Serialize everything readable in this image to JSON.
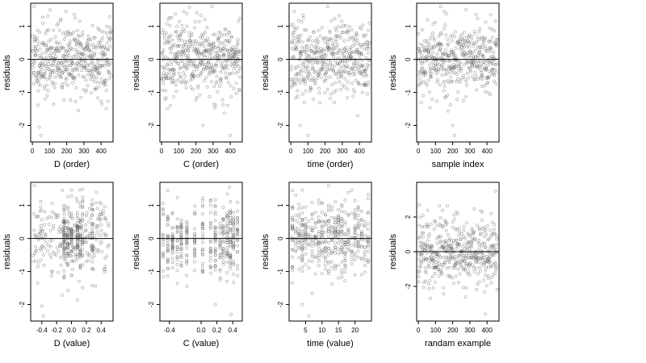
{
  "chart_data": [
    {
      "type": "scatter",
      "xlabel": "D (order)",
      "ylabel": "residuals",
      "xlim": [
        -10,
        470
      ],
      "ylim": [
        -2.5,
        1.7
      ],
      "xticks": [
        0,
        100,
        200,
        300,
        400
      ],
      "xtick_labels": [
        "0",
        "100",
        "200",
        "300",
        "400"
      ],
      "yticks": [
        -2,
        -1,
        0,
        1
      ],
      "ytick_labels": [
        "-2",
        "-1",
        "0",
        "1"
      ],
      "reference_line_y": 0,
      "grid": false,
      "series": [
        {
          "x_kind": "index",
          "n": 460,
          "seed": 11,
          "sd": 0.55,
          "outliers": [
            [
              40,
              -2.05
            ],
            [
              50,
              -2.3
            ],
            [
              75,
              -1.2
            ],
            [
              195,
              1.45
            ],
            [
              10,
              1.6
            ]
          ]
        }
      ]
    },
    {
      "type": "scatter",
      "xlabel": "C (order)",
      "ylabel": "residuals",
      "xlim": [
        -10,
        470
      ],
      "ylim": [
        -2.5,
        1.7
      ],
      "xticks": [
        0,
        100,
        200,
        300,
        400
      ],
      "xtick_labels": [
        "0",
        "100",
        "200",
        "300",
        "400"
      ],
      "yticks": [
        -2,
        -1,
        0,
        1
      ],
      "ytick_labels": [
        "-2",
        "-1",
        "0",
        "1"
      ],
      "reference_line_y": 0,
      "grid": false,
      "series": [
        {
          "x_kind": "index",
          "n": 460,
          "seed": 23,
          "sd": 0.55,
          "outliers": [
            [
              240,
              -2.0
            ],
            [
              400,
              -2.3
            ],
            [
              295,
              1.6
            ],
            [
              130,
              1.45
            ]
          ]
        }
      ]
    },
    {
      "type": "scatter",
      "xlabel": "time (order)",
      "ylabel": "residuals",
      "xlim": [
        -10,
        470
      ],
      "ylim": [
        -2.5,
        1.7
      ],
      "xticks": [
        0,
        100,
        200,
        300,
        400
      ],
      "xtick_labels": [
        "0",
        "100",
        "200",
        "300",
        "400"
      ],
      "yticks": [
        -2,
        -1,
        0,
        1
      ],
      "ytick_labels": [
        "-2",
        "-1",
        "0",
        "1"
      ],
      "reference_line_y": 0,
      "grid": false,
      "series": [
        {
          "x_kind": "index",
          "n": 460,
          "seed": 37,
          "sd": 0.55,
          "outliers": [
            [
              55,
              -2.0
            ],
            [
              100,
              -2.3
            ],
            [
              215,
              1.6
            ],
            [
              20,
              1.45
            ]
          ]
        }
      ]
    },
    {
      "type": "scatter",
      "xlabel": "sample index",
      "ylabel": "residuals",
      "xlim": [
        -10,
        470
      ],
      "ylim": [
        -2.5,
        1.7
      ],
      "xticks": [
        0,
        100,
        200,
        300,
        400
      ],
      "xtick_labels": [
        "0",
        "100",
        "200",
        "300",
        "400"
      ],
      "yticks": [
        -2,
        -1,
        0,
        1
      ],
      "ytick_labels": [
        "-2",
        "-1",
        "0",
        "1"
      ],
      "reference_line_y": 0,
      "grid": false,
      "series": [
        {
          "x_kind": "index",
          "n": 460,
          "seed": 53,
          "sd": 0.55,
          "outliers": [
            [
              200,
              -2.0
            ],
            [
              210,
              -2.3
            ],
            [
              130,
              1.6
            ],
            [
              150,
              1.45
            ]
          ]
        }
      ]
    },
    {
      "type": "scatter",
      "xlabel": "D (value)",
      "ylabel": "residuals",
      "xlim": [
        -0.55,
        0.56
      ],
      "ylim": [
        -2.5,
        1.7
      ],
      "xticks": [
        -0.4,
        -0.2,
        0.0,
        0.2,
        0.4
      ],
      "xtick_labels": [
        "-0.4",
        "-0.2",
        "0.0",
        "0.2",
        "0.4"
      ],
      "yticks": [
        -2,
        -1,
        0,
        1
      ],
      "ytick_labels": [
        "-2",
        "-1",
        "0",
        "1"
      ],
      "reference_line_y": 0,
      "grid": false,
      "series": [
        {
          "x_kind": "uniform",
          "x_range": [
            -0.52,
            0.52
          ],
          "n": 460,
          "seed": 67,
          "sd": 0.55,
          "columns": [
            -0.1,
            -0.05,
            0.0,
            0.08,
            0.12,
            0.15,
            0.28
          ],
          "outliers": [
            [
              -0.4,
              -2.05
            ],
            [
              -0.38,
              -2.35
            ],
            [
              -0.5,
              1.6
            ],
            [
              0.1,
              -1.3
            ]
          ]
        }
      ]
    },
    {
      "type": "scatter",
      "xlabel": "C (value)",
      "ylabel": "residuals",
      "xlim": [
        -0.52,
        0.52
      ],
      "ylim": [
        -2.5,
        1.7
      ],
      "xticks": [
        -0.4,
        0.0,
        0.2,
        0.4
      ],
      "xtick_labels": [
        "-0.4",
        "0.0",
        "0.2",
        "0.4"
      ],
      "yticks": [
        -2,
        -1,
        0,
        1
      ],
      "ytick_labels": [
        "-2",
        "-1",
        "0",
        "1"
      ],
      "reference_line_y": 0,
      "grid": false,
      "series": [
        {
          "x_kind": "columns",
          "columns": [
            -0.48,
            -0.42,
            -0.36,
            -0.3,
            -0.25,
            -0.18,
            -0.08,
            0.02,
            0.12,
            0.18,
            0.24,
            0.28,
            0.33,
            0.37,
            0.41,
            0.46
          ],
          "n": 420,
          "seed": 79,
          "sd": 0.55,
          "outliers": [
            [
              0.18,
              -2.0
            ],
            [
              0.38,
              -2.3
            ],
            [
              0.36,
              1.55
            ]
          ]
        }
      ]
    },
    {
      "type": "scatter",
      "xlabel": "time (value)",
      "ylabel": "residuals",
      "xlim": [
        0,
        25
      ],
      "ylim": [
        -2.5,
        1.7
      ],
      "xticks": [
        5,
        10,
        15,
        20
      ],
      "xtick_labels": [
        "5",
        "10",
        "15",
        "20"
      ],
      "yticks": [
        -2,
        -1,
        0,
        1
      ],
      "ytick_labels": [
        "-2",
        "-1",
        "0",
        "1"
      ],
      "reference_line_y": 0,
      "grid": false,
      "series": [
        {
          "x_kind": "columns",
          "columns": [
            1,
            2,
            3,
            4,
            5,
            6,
            7,
            8,
            9,
            10,
            11,
            12,
            13,
            14,
            15,
            16,
            17,
            18,
            19,
            20,
            21,
            22,
            23,
            24
          ],
          "n": 460,
          "seed": 91,
          "sd": 0.55,
          "outliers": [
            [
              4,
              -2.0
            ],
            [
              6,
              -2.35
            ],
            [
              12,
              1.6
            ],
            [
              1,
              1.45
            ]
          ]
        }
      ]
    },
    {
      "type": "scatter",
      "xlabel": "randam example",
      "ylabel": "residuals",
      "xlim": [
        -10,
        470
      ],
      "ylim": [
        -4,
        4
      ],
      "xticks": [
        0,
        100,
        200,
        300,
        400
      ],
      "xtick_labels": [
        "0",
        "100",
        "200",
        "300",
        "400"
      ],
      "yticks": [
        -2,
        0,
        2
      ],
      "ytick_labels": [
        "-2",
        "0",
        "2"
      ],
      "reference_line_y": 0,
      "grid": false,
      "series": [
        {
          "x_kind": "index",
          "n": 460,
          "seed": 103,
          "sd": 1.0,
          "outliers": [
            [
              450,
              3.5
            ],
            [
              390,
              -3.6
            ],
            [
              5,
              2.7
            ]
          ]
        }
      ]
    }
  ]
}
